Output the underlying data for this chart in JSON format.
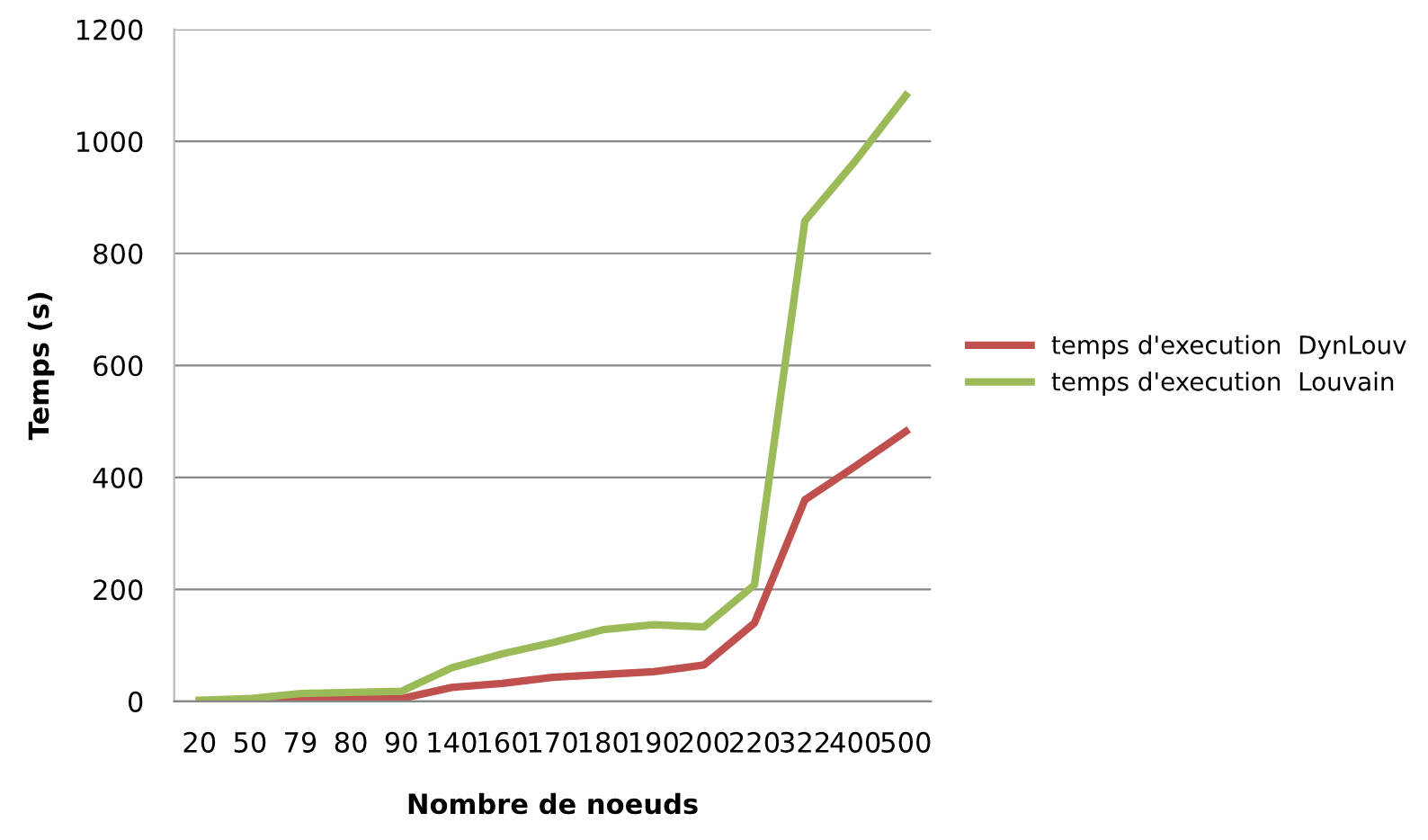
{
  "chart_data": {
    "type": "line",
    "xlabel": "Nombre de noeuds",
    "ylabel": "Temps (s)",
    "categories": [
      "20",
      "50",
      "79",
      "80",
      "90",
      "140",
      "160",
      "170",
      "180",
      "190",
      "200",
      "220",
      "322",
      "400",
      "500"
    ],
    "series": [
      {
        "name": "temps d'execution  DynLouv",
        "color": "#c0504d",
        "values": [
          0,
          2,
          5,
          6,
          5,
          25,
          32,
          43,
          48,
          53,
          65,
          140,
          360,
          420,
          482
        ]
      },
      {
        "name": "temps d'execution  Louvain",
        "color": "#9bbb59",
        "values": [
          2,
          5,
          14,
          16,
          18,
          60,
          85,
          105,
          128,
          137,
          133,
          208,
          858,
          965,
          1082
        ]
      }
    ],
    "ylim": [
      0,
      1200
    ],
    "yticks": [
      0,
      200,
      400,
      600,
      800,
      1000,
      1200
    ],
    "grid": "y",
    "legend": "right",
    "marker": "none",
    "line_style": "solid"
  }
}
